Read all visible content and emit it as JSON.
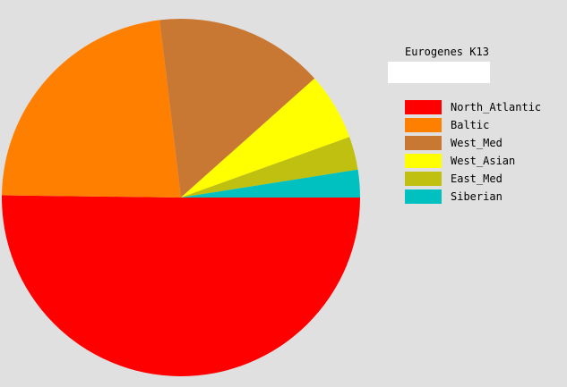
{
  "chart_data": {
    "type": "pie",
    "title": "Eurogenes K13",
    "subtitle": "",
    "legend_position": "right",
    "start_angle": "3 o'clock, clockwise",
    "categories": [
      "North_Atlantic",
      "Baltic",
      "West_Med",
      "West_Asian",
      "East_Med",
      "Siberian"
    ],
    "values": [
      50.2,
      22.9,
      15.3,
      6.1,
      3.0,
      2.5
    ],
    "colors": [
      "#ff0000",
      "#ff8000",
      "#c87832",
      "#ffff00",
      "#c0c010",
      "#00c0c0"
    ]
  }
}
